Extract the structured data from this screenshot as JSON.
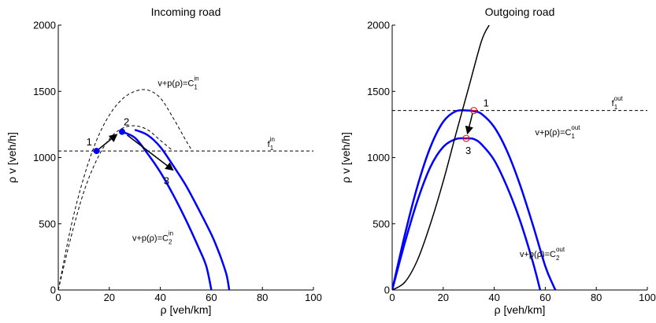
{
  "chart_data": [
    {
      "type": "line",
      "title": "Incoming road",
      "xlabel": "ρ [veh/km]",
      "ylabel": "ρ v [veh/h]",
      "xlim": [
        0,
        100
      ],
      "ylim": [
        0,
        2000
      ],
      "xticks": [
        "0",
        "20",
        "40",
        "60",
        "80",
        "100"
      ],
      "yticks": [
        "0",
        "500",
        "1000",
        "1500",
        "2000"
      ],
      "grid": false,
      "series": [
        {
          "style": "solid",
          "color": "#0000ff",
          "x": [
            30,
            35,
            40,
            45,
            50,
            55,
            60,
            62,
            64,
            66,
            67
          ],
          "y": [
            1210,
            1170,
            1080,
            940,
            790,
            610,
            420,
            330,
            230,
            110,
            0
          ]
        },
        {
          "style": "solid",
          "color": "#0000ff",
          "x": [
            25,
            30,
            35,
            40,
            45,
            50,
            55,
            58,
            60
          ],
          "y": [
            1195,
            1150,
            1030,
            890,
            720,
            530,
            320,
            180,
            0
          ]
        },
        {
          "style": "dashed",
          "color": "#000000",
          "x": [
            0,
            5,
            10,
            15,
            20,
            25,
            30,
            35,
            40,
            45,
            50,
            52.5
          ],
          "y": [
            0,
            480,
            850,
            1130,
            1320,
            1440,
            1500,
            1510,
            1450,
            1300,
            1130,
            1050
          ]
        },
        {
          "style": "dashed",
          "color": "#000000",
          "x": [
            0,
            5,
            10,
            15,
            20,
            25,
            30,
            35,
            40,
            45
          ],
          "y": [
            0,
            400,
            740,
            980,
            1140,
            1220,
            1240,
            1210,
            1130,
            1050
          ]
        }
      ],
      "reference_lines": [
        {
          "style": "dashed",
          "y": 1050
        }
      ],
      "points": [
        {
          "label": "1",
          "x": 15,
          "y": 1050
        },
        {
          "label": "2",
          "x": 25,
          "y": 1195
        }
      ],
      "arrows": [
        {
          "from": [
            15,
            1050
          ],
          "to": [
            23,
            1175
          ]
        },
        {
          "from": [
            27,
            1170
          ],
          "to": [
            45,
            905
          ],
          "label": "3"
        }
      ],
      "annotations": [
        {
          "base": "v+p(ρ)=C",
          "sub": "1",
          "sup": "in",
          "x": 39,
          "y": 1540
        },
        {
          "base": "v+p(ρ)=C",
          "sub": "2",
          "sup": "in",
          "x": 29,
          "y": 370
        },
        {
          "base": "f",
          "sub": "1",
          "sup": "in",
          "x": 82,
          "y": 1080
        }
      ]
    },
    {
      "type": "line",
      "title": "Outgoing road",
      "xlabel": "ρ [veh/km]",
      "ylabel": "ρ v [veh/h]",
      "xlim": [
        0,
        100
      ],
      "ylim": [
        0,
        2000
      ],
      "xticks": [
        "0",
        "20",
        "40",
        "60",
        "80",
        "100"
      ],
      "yticks": [
        "0",
        "500",
        "1000",
        "1500",
        "2000"
      ],
      "grid": false,
      "series": [
        {
          "style": "solid",
          "color": "#0000ff",
          "x": [
            0,
            5,
            10,
            15,
            20,
            25,
            30,
            32,
            35,
            40,
            45,
            50,
            55,
            60,
            63,
            64
          ],
          "y": [
            0,
            420,
            790,
            1080,
            1270,
            1350,
            1355,
            1350,
            1330,
            1230,
            1050,
            800,
            500,
            180,
            40,
            0
          ]
        },
        {
          "style": "solid",
          "color": "#0000ff",
          "x": [
            0,
            5,
            10,
            15,
            20,
            25,
            29,
            32,
            35,
            40,
            45,
            50,
            55,
            58
          ],
          "y": [
            0,
            360,
            680,
            930,
            1080,
            1140,
            1145,
            1140,
            1100,
            980,
            780,
            530,
            220,
            0
          ]
        },
        {
          "style": "solid",
          "color": "#000000",
          "x": [
            0,
            5,
            10,
            15,
            20,
            25,
            30,
            35,
            38
          ],
          "y": [
            0,
            60,
            230,
            500,
            820,
            1180,
            1530,
            1880,
            2000
          ]
        }
      ],
      "reference_lines": [
        {
          "style": "dashed",
          "y": 1355
        }
      ],
      "points": [
        {
          "label": "1",
          "x": 32,
          "y": 1355
        },
        {
          "label": "3",
          "x": 29,
          "y": 1145
        }
      ],
      "arrows": [
        {
          "from": [
            31.5,
            1335
          ],
          "to": [
            29.5,
            1180
          ]
        }
      ],
      "annotations": [
        {
          "base": "f",
          "sub": "1",
          "sup": "out",
          "x": 86,
          "y": 1390
        },
        {
          "base": "v+p(ρ)=C",
          "sub": "1",
          "sup": "out",
          "x": 56,
          "y": 1170
        },
        {
          "base": "v+p(ρ)=C",
          "sub": "2",
          "sup": "out",
          "x": 50,
          "y": 250
        }
      ]
    }
  ]
}
